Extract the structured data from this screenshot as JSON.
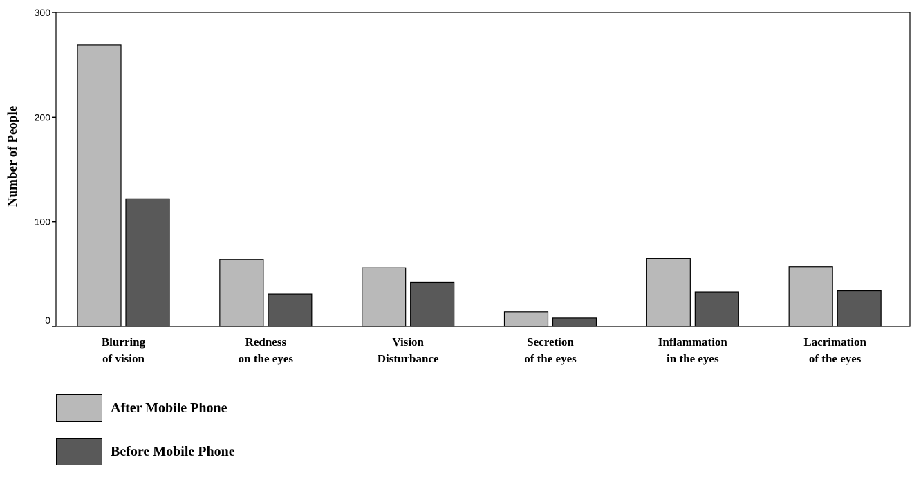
{
  "chart_data": {
    "type": "bar",
    "title": "",
    "ylabel": "Number of People",
    "xlabel": "",
    "ylim": [
      0,
      300
    ],
    "yticks": [
      0,
      100,
      200,
      300
    ],
    "grid": false,
    "legend_position": "bottom-left",
    "categories": [
      [
        "Blurring",
        "of vision"
      ],
      [
        "Redness",
        "on the eyes"
      ],
      [
        "Vision",
        "Disturbance"
      ],
      [
        "Secretion",
        "of the eyes"
      ],
      [
        "Inflammation",
        "in the eyes"
      ],
      [
        "Lacrimation",
        "of the eyes"
      ]
    ],
    "series": [
      {
        "name": "After Mobile Phone",
        "color": "#b9b9b9",
        "values": [
          269,
          64,
          56,
          14,
          65,
          57
        ]
      },
      {
        "name": "Before Mobile Phone",
        "color": "#595959",
        "values": [
          122,
          31,
          42,
          8,
          33,
          34
        ]
      }
    ]
  }
}
